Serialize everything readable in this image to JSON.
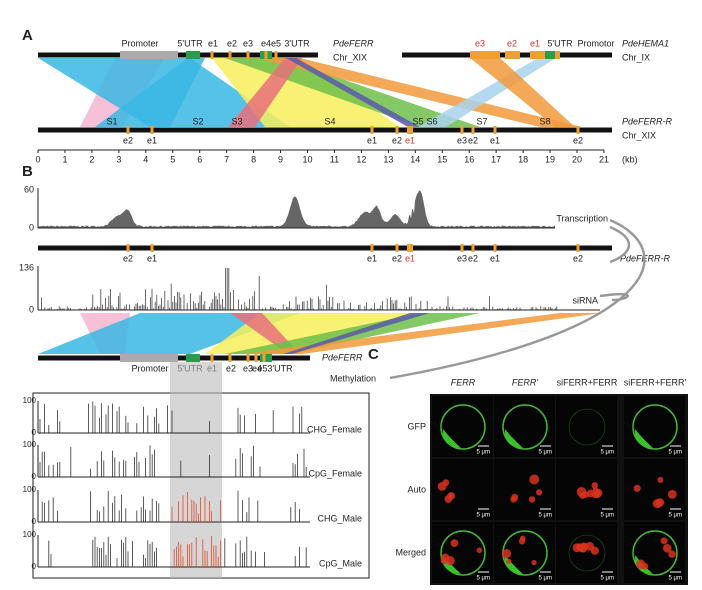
{
  "panel_a": {
    "label": "A",
    "ferr": {
      "features": [
        "Promoter",
        "5'UTR",
        "e1",
        "e2",
        "e3",
        "e4",
        "e5",
        "3'UTR"
      ],
      "name": "PdeFERR",
      "chromosome": "Chr_XIX"
    },
    "hema": {
      "features": [
        "e3",
        "e2",
        "e1",
        "5'UTR",
        "Promotor"
      ],
      "name": "PdeHEMA1",
      "chromosome": "Chr_IX"
    },
    "ferr_r": {
      "segments": [
        "S1",
        "S2",
        "S3",
        "S4",
        "S5",
        "S6",
        "S7",
        "S8"
      ],
      "exons": [
        "e2",
        "e1",
        "e1",
        "e2",
        "e1",
        "e3",
        "e2",
        "e1",
        "e2"
      ],
      "name": "PdeFERR-R",
      "chromosome": "Chr_XIX"
    },
    "axis": {
      "ticks": [
        0,
        1,
        2,
        3,
        4,
        5,
        6,
        7,
        8,
        9,
        10,
        11,
        12,
        13,
        14,
        15,
        16,
        17,
        18,
        19,
        20,
        21
      ],
      "unit": "(kb)"
    }
  },
  "panel_b": {
    "label": "B",
    "transcription": {
      "max": 60,
      "min": 0,
      "label": "Transcription"
    },
    "ferr_r": {
      "exons": [
        "e2",
        "e1",
        "e1",
        "e2",
        "e1",
        "e3",
        "e2",
        "e1",
        "e2"
      ],
      "name": "PdeFERR-R"
    },
    "sirna": {
      "max": 136,
      "min": 0,
      "label": "siRNA"
    },
    "ferr": {
      "features": [
        "Promoter",
        "5'UTR",
        "e1",
        "e2",
        "e3",
        "e4",
        "e53'UTR"
      ],
      "name": "PdeFERR"
    },
    "methylation": {
      "label": "Methylation",
      "tracks": [
        {
          "name": "CHG_Female",
          "max": 100,
          "min": 0
        },
        {
          "name": "CpG_Female",
          "max": 100,
          "min": 0
        },
        {
          "name": "CHG_Male",
          "max": 100,
          "min": 0
        },
        {
          "name": "CpG_Male",
          "max": 100,
          "min": 0
        }
      ]
    }
  },
  "panel_c": {
    "label": "C",
    "columns": [
      "FERR",
      "FERR'",
      "siFERR+FERR",
      "siFERR+FERR'"
    ],
    "rows": [
      "GFP",
      "Auto",
      "Merged"
    ],
    "scale_bar": "5 μm"
  }
}
